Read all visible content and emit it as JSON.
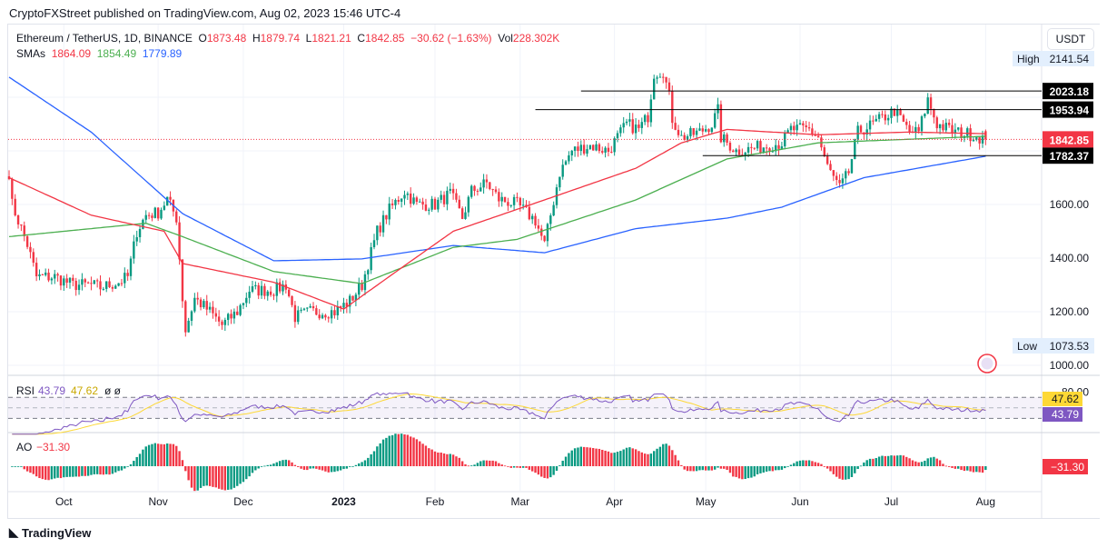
{
  "publisher": "CryptoFXStreet published on TradingView.com, Aug 02, 2023 15:46 UTC-4",
  "legend": {
    "symbol": "Ethereum / TetherUS, 1D, BINANCE",
    "o_label": "O",
    "o": "1873.48",
    "h_label": "H",
    "h": "1879.74",
    "l_label": "L",
    "l": "1821.21",
    "c_label": "C",
    "c": "1842.85",
    "change": "−30.62 (−1.63%)",
    "vol_label": "Vol",
    "vol": "228.302K",
    "sma_label": "SMAs",
    "sma1": "1864.09",
    "sma2": "1854.49",
    "sma3": "1779.89"
  },
  "currency_button": "USDT",
  "rsi_legend": {
    "label": "RSI",
    "v1": "43.79",
    "v2": "47.62",
    "extra": "ø ø"
  },
  "ao_legend": {
    "label": "AO",
    "v": "−31.30"
  },
  "footer_logo": "TradingView",
  "colors": {
    "up": "#089981",
    "down": "#f23645",
    "sma50": "#f23645",
    "sma100": "#4caf50",
    "sma200": "#2962ff",
    "rsi": "#7e57c2",
    "rsi_ma": "#fdd835"
  },
  "chart_data": {
    "type": "candlestick",
    "ylim": [
      950,
      2230
    ],
    "y_ticks": [
      1000,
      1200,
      1400,
      1600
    ],
    "y_tick_labels": [
      "1000.00",
      "1200.00",
      "1400.00",
      "1600.00"
    ],
    "x_ticks": [
      {
        "day": 18,
        "label": "Oct"
      },
      {
        "day": 49,
        "label": "Nov"
      },
      {
        "day": 77,
        "label": "Dec"
      },
      {
        "day": 110,
        "label": "2023"
      },
      {
        "day": 140,
        "label": "Feb"
      },
      {
        "day": 168,
        "label": "Mar"
      },
      {
        "day": 199,
        "label": "Apr"
      },
      {
        "day": 229,
        "label": "May"
      },
      {
        "day": 260,
        "label": "Jun"
      },
      {
        "day": 290,
        "label": "Jul"
      },
      {
        "day": 321,
        "label": "Aug"
      }
    ],
    "close_anchors": [
      [
        0,
        1720
      ],
      [
        1,
        1600
      ],
      [
        6,
        1450
      ],
      [
        9,
        1330
      ],
      [
        15,
        1330
      ],
      [
        21,
        1300
      ],
      [
        27,
        1300
      ],
      [
        30,
        1290
      ],
      [
        36,
        1310
      ],
      [
        39,
        1330
      ],
      [
        42,
        1500
      ],
      [
        45,
        1560
      ],
      [
        49,
        1570
      ],
      [
        52,
        1620
      ],
      [
        55,
        1550
      ],
      [
        57,
        1250
      ],
      [
        58,
        1130
      ],
      [
        61,
        1250
      ],
      [
        66,
        1200
      ],
      [
        70,
        1150
      ],
      [
        75,
        1200
      ],
      [
        79,
        1280
      ],
      [
        87,
        1280
      ],
      [
        91,
        1300
      ],
      [
        94,
        1180
      ],
      [
        99,
        1200
      ],
      [
        107,
        1200
      ],
      [
        112,
        1240
      ],
      [
        116,
        1300
      ],
      [
        121,
        1500
      ],
      [
        125,
        1580
      ],
      [
        130,
        1650
      ],
      [
        134,
        1600
      ],
      [
        140,
        1600
      ],
      [
        145,
        1640
      ],
      [
        149,
        1550
      ],
      [
        152,
        1650
      ],
      [
        157,
        1680
      ],
      [
        161,
        1620
      ],
      [
        167,
        1600
      ],
      [
        173,
        1540
      ],
      [
        176,
        1450
      ],
      [
        178,
        1560
      ],
      [
        181,
        1720
      ],
      [
        185,
        1800
      ],
      [
        191,
        1820
      ],
      [
        197,
        1800
      ],
      [
        203,
        1900
      ],
      [
        207,
        1880
      ],
      [
        210,
        1930
      ],
      [
        212,
        2090
      ],
      [
        215,
        2100
      ],
      [
        217,
        2000
      ],
      [
        218,
        1920
      ],
      [
        221,
        1850
      ],
      [
        227,
        1870
      ],
      [
        231,
        1900
      ],
      [
        233,
        1950
      ],
      [
        234,
        1850
      ],
      [
        239,
        1800
      ],
      [
        245,
        1810
      ],
      [
        254,
        1830
      ],
      [
        257,
        1880
      ],
      [
        263,
        1880
      ],
      [
        266,
        1850
      ],
      [
        269,
        1740
      ],
      [
        273,
        1660
      ],
      [
        276,
        1720
      ],
      [
        279,
        1870
      ],
      [
        284,
        1900
      ],
      [
        291,
        1950
      ],
      [
        296,
        1870
      ],
      [
        299,
        1870
      ],
      [
        302,
        1990
      ],
      [
        305,
        1900
      ],
      [
        311,
        1870
      ],
      [
        317,
        1860
      ],
      [
        321,
        1842.85
      ]
    ],
    "sma50_anchors": [
      [
        0,
        1700
      ],
      [
        27,
        1560
      ],
      [
        51,
        1500
      ],
      [
        57,
        1380
      ],
      [
        87,
        1310
      ],
      [
        110,
        1210
      ],
      [
        131,
        1380
      ],
      [
        146,
        1500
      ],
      [
        176,
        1617
      ],
      [
        206,
        1735
      ],
      [
        221,
        1830
      ],
      [
        236,
        1880
      ],
      [
        266,
        1860
      ],
      [
        296,
        1870
      ],
      [
        321,
        1864.09
      ]
    ],
    "sma100_anchors": [
      [
        0,
        1480
      ],
      [
        27,
        1510
      ],
      [
        45,
        1530
      ],
      [
        57,
        1480
      ],
      [
        87,
        1350
      ],
      [
        116,
        1305
      ],
      [
        146,
        1440
      ],
      [
        167,
        1470
      ],
      [
        206,
        1617
      ],
      [
        236,
        1770
      ],
      [
        266,
        1830
      ],
      [
        321,
        1854.49
      ]
    ],
    "sma200_anchors": [
      [
        0,
        2075
      ],
      [
        27,
        1870
      ],
      [
        57,
        1566
      ],
      [
        87,
        1390
      ],
      [
        116,
        1397
      ],
      [
        146,
        1447
      ],
      [
        176,
        1420
      ],
      [
        206,
        1510
      ],
      [
        236,
        1549
      ],
      [
        254,
        1590
      ],
      [
        281,
        1700
      ],
      [
        321,
        1779.89
      ]
    ],
    "levels": [
      {
        "value": 2023.18,
        "label": "2023.18",
        "from_day": 188
      },
      {
        "value": 1953.94,
        "label": "1953.94",
        "from_day": 173
      },
      {
        "value": 1782.37,
        "label": "1782.37",
        "from_day": 228
      }
    ],
    "last_price": {
      "value": 1842.85,
      "label": "1842.85"
    },
    "high": {
      "label": "High",
      "value": "2141.54"
    },
    "low": {
      "label": "Low",
      "value": "1073.53"
    },
    "rsi_axis": {
      "label": "80.00",
      "rsi_ma": "47.62",
      "rsi": "43.79"
    },
    "ao_last": "−31.30"
  }
}
